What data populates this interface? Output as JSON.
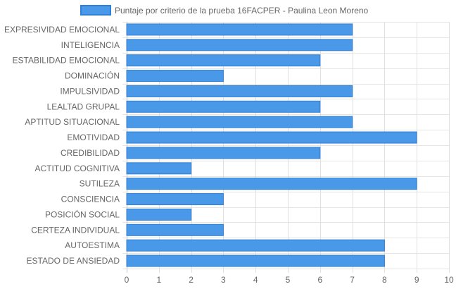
{
  "chart_data": {
    "type": "bar",
    "orientation": "horizontal",
    "categories": [
      "EXPRESIVIDAD EMOCIONAL",
      "INTELIGENCIA",
      "ESTABILIDAD EMOCIONAL",
      "DOMINACIÓN",
      "IMPULSIVIDAD",
      "LEALTAD GRUPAL",
      "APTITUD SITUACIONAL",
      "EMOTIVIDAD",
      "CREDIBILIDAD",
      "ACTITUD COGNITIVA",
      "SUTILEZA",
      "CONSCIENCIA",
      "POSICIÓN SOCIAL",
      "CERTEZA INDIVIDUAL",
      "AUTOESTIMA",
      "ESTADO DE ANSIEDAD"
    ],
    "series": [
      {
        "name": "Puntaje por criterio de la prueba 16FACPER - Paulina Leon Moreno",
        "values": [
          7,
          7,
          6,
          3,
          7,
          6,
          7,
          9,
          6,
          2,
          9,
          3,
          2,
          3,
          8,
          8
        ],
        "color": "#4a98e8",
        "border_color": "#2f7fd6"
      }
    ],
    "xlim": [
      0,
      10
    ],
    "x_ticks": [
      0,
      1,
      2,
      3,
      4,
      5,
      6,
      7,
      8,
      9,
      10
    ],
    "grid": true,
    "legend_position": "top"
  }
}
